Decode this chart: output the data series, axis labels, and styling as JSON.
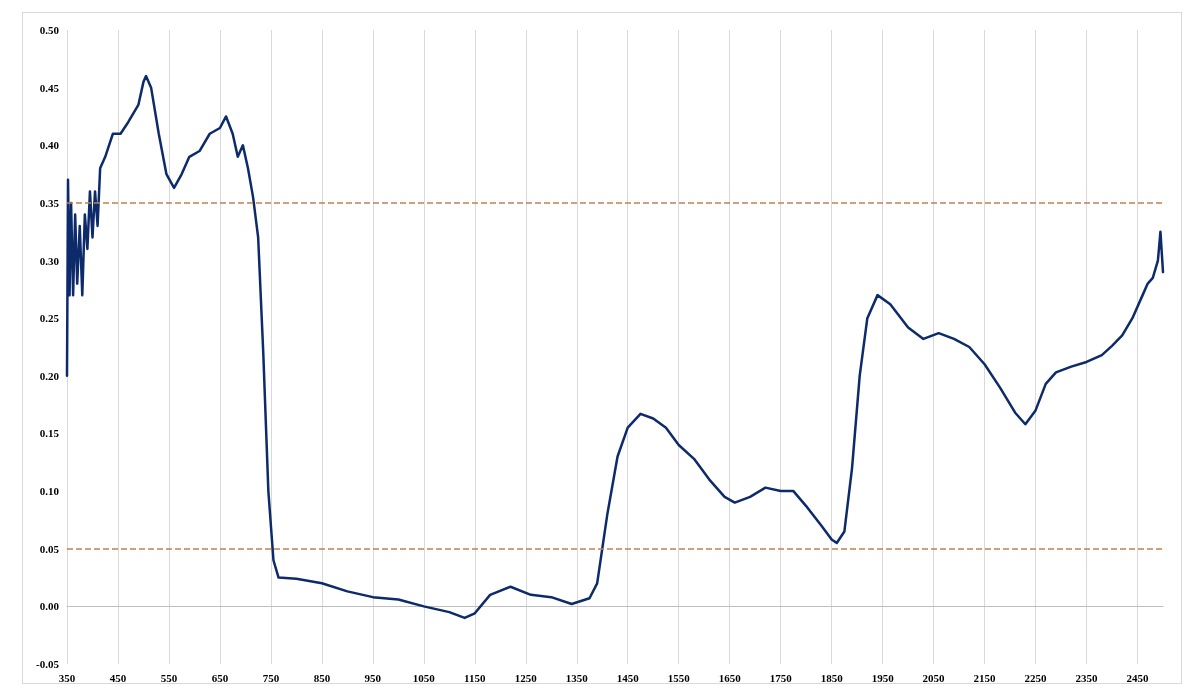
{
  "chart_data": {
    "type": "line",
    "x": [
      350,
      352,
      355,
      358,
      362,
      366,
      370,
      375,
      380,
      385,
      390,
      395,
      400,
      405,
      410,
      415,
      425,
      440,
      455,
      470,
      490,
      500,
      505,
      515,
      530,
      545,
      560,
      575,
      590,
      610,
      630,
      650,
      662,
      675,
      685,
      695,
      705,
      715,
      725,
      735,
      745,
      755,
      765,
      800,
      850,
      900,
      950,
      1000,
      1050,
      1100,
      1130,
      1150,
      1180,
      1220,
      1260,
      1300,
      1340,
      1375,
      1390,
      1410,
      1430,
      1450,
      1475,
      1500,
      1525,
      1550,
      1580,
      1610,
      1640,
      1660,
      1690,
      1720,
      1750,
      1775,
      1800,
      1830,
      1850,
      1860,
      1875,
      1890,
      1905,
      1920,
      1940,
      1965,
      2000,
      2030,
      2060,
      2090,
      2120,
      2150,
      2180,
      2210,
      2230,
      2250,
      2270,
      2290,
      2320,
      2350,
      2380,
      2400,
      2420,
      2440,
      2460,
      2470,
      2480,
      2490,
      2495,
      2500
    ],
    "series": [
      {
        "color": "#0d2a6b",
        "values": [
          0.2,
          0.37,
          0.27,
          0.35,
          0.27,
          0.34,
          0.28,
          0.33,
          0.27,
          0.34,
          0.31,
          0.36,
          0.32,
          0.36,
          0.33,
          0.38,
          0.39,
          0.41,
          0.41,
          0.42,
          0.435,
          0.455,
          0.46,
          0.45,
          0.41,
          0.375,
          0.363,
          0.375,
          0.39,
          0.395,
          0.41,
          0.415,
          0.425,
          0.41,
          0.39,
          0.4,
          0.38,
          0.355,
          0.32,
          0.22,
          0.1,
          0.04,
          0.025,
          0.024,
          0.02,
          0.013,
          0.008,
          0.006,
          0.0,
          -0.005,
          -0.01,
          -0.006,
          0.01,
          0.017,
          0.01,
          0.008,
          0.002,
          0.007,
          0.02,
          0.08,
          0.13,
          0.155,
          0.167,
          0.163,
          0.155,
          0.14,
          0.128,
          0.11,
          0.095,
          0.09,
          0.095,
          0.103,
          0.1,
          0.1,
          0.087,
          0.07,
          0.058,
          0.055,
          0.065,
          0.12,
          0.2,
          0.25,
          0.27,
          0.262,
          0.242,
          0.232,
          0.237,
          0.232,
          0.225,
          0.21,
          0.19,
          0.168,
          0.158,
          0.17,
          0.193,
          0.203,
          0.208,
          0.212,
          0.218,
          0.226,
          0.235,
          0.25,
          0.27,
          0.28,
          0.285,
          0.3,
          0.325,
          0.29
        ]
      }
    ],
    "xlim": [
      350,
      2500
    ],
    "xticks": [
      350,
      450,
      550,
      650,
      750,
      850,
      950,
      1050,
      1150,
      1250,
      1350,
      1450,
      1550,
      1650,
      1750,
      1850,
      1950,
      2050,
      2150,
      2250,
      2350,
      2450
    ],
    "ylim": [
      -0.05,
      0.5
    ],
    "yticks": [
      -0.05,
      {
        "value": 0,
        "label": "0.00"
      },
      0.05,
      {
        "value": 0.1,
        "label": "0.10"
      },
      0.15,
      {
        "value": 0.2,
        "label": "0.20"
      },
      0.25,
      {
        "value": 0.3,
        "label": "0.30"
      },
      0.35,
      {
        "value": 0.4,
        "label": "0.40"
      },
      0.45,
      {
        "value": 0.5,
        "label": "0.50"
      }
    ],
    "grid": "x",
    "marker": "none",
    "line_style": "solid",
    "ref_lines": [
      {
        "axis": "y",
        "value": 0.35,
        "color": "#c0814f",
        "line_style": "dashed"
      },
      {
        "axis": "y",
        "value": 0.05,
        "color": "#c0814f",
        "line_style": "dashed"
      }
    ]
  }
}
